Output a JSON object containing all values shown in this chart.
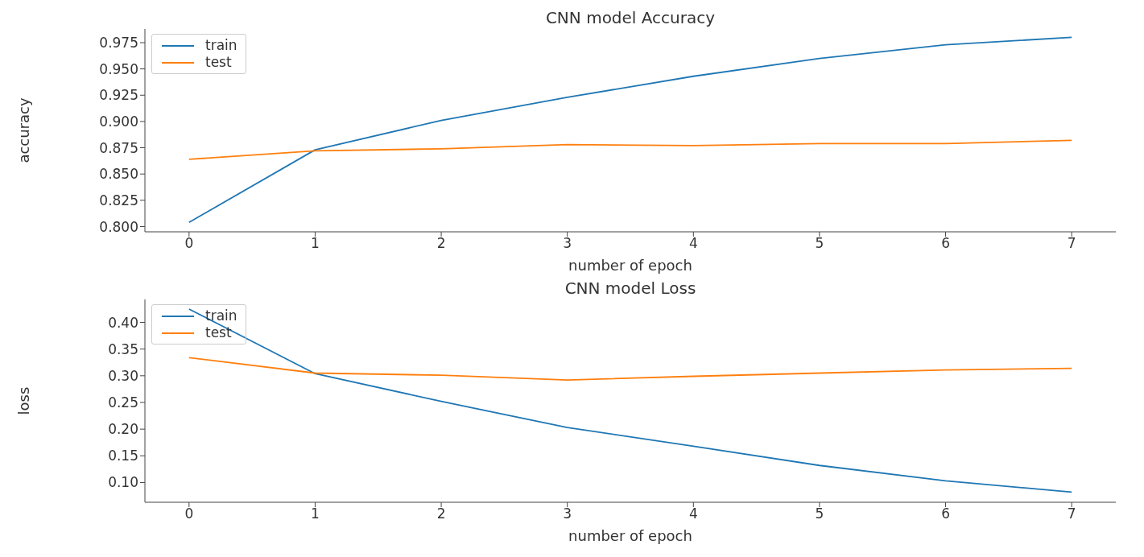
{
  "chart_data": [
    {
      "type": "line",
      "title": "CNN model Accuracy",
      "xlabel": "number of epoch",
      "ylabel": "accuracy",
      "x": [
        0,
        1,
        2,
        3,
        4,
        5,
        6,
        7
      ],
      "xlim": [
        -0.35,
        7.35
      ],
      "xticks": [
        0,
        1,
        2,
        3,
        4,
        5,
        6,
        7
      ],
      "ylim": [
        0.795,
        0.988
      ],
      "yticks": [
        {
          "value": 0.8,
          "label": "0.800"
        },
        0.825,
        {
          "value": 0.85,
          "label": "0.850"
        },
        0.875,
        {
          "value": 0.9,
          "label": "0.900"
        },
        0.925,
        {
          "value": 0.95,
          "label": "0.950"
        },
        0.975
      ],
      "grid": false,
      "legend": "top left",
      "marker": "none",
      "series": [
        {
          "name": "train",
          "color": "#1f77b4",
          "values": [
            0.804,
            0.873,
            0.901,
            0.923,
            0.943,
            0.96,
            0.973,
            0.98
          ]
        },
        {
          "name": "test",
          "color": "#ff7f0e",
          "values": [
            0.864,
            0.872,
            0.874,
            0.878,
            0.877,
            0.879,
            0.879,
            0.882
          ]
        }
      ]
    },
    {
      "type": "line",
      "title": "CNN model Loss",
      "xlabel": "number of epoch",
      "ylabel": "loss",
      "x": [
        0,
        1,
        2,
        3,
        4,
        5,
        6,
        7
      ],
      "xlim": [
        -0.35,
        7.35
      ],
      "xticks": [
        0,
        1,
        2,
        3,
        4,
        5,
        6,
        7
      ],
      "ylim": [
        0.063,
        0.443
      ],
      "yticks": [
        {
          "value": 0.1,
          "label": "0.10"
        },
        0.15,
        {
          "value": 0.2,
          "label": "0.20"
        },
        0.25,
        {
          "value": 0.3,
          "label": "0.30"
        },
        0.35,
        {
          "value": 0.4,
          "label": "0.40"
        }
      ],
      "grid": false,
      "legend": "top left",
      "marker": "none",
      "series": [
        {
          "name": "train",
          "color": "#1f77b4",
          "values": [
            0.425,
            0.304,
            0.252,
            0.203,
            0.168,
            0.132,
            0.103,
            0.082
          ]
        },
        {
          "name": "test",
          "color": "#ff7f0e",
          "values": [
            0.334,
            0.305,
            0.301,
            0.292,
            0.299,
            0.305,
            0.311,
            0.314
          ]
        }
      ]
    }
  ]
}
